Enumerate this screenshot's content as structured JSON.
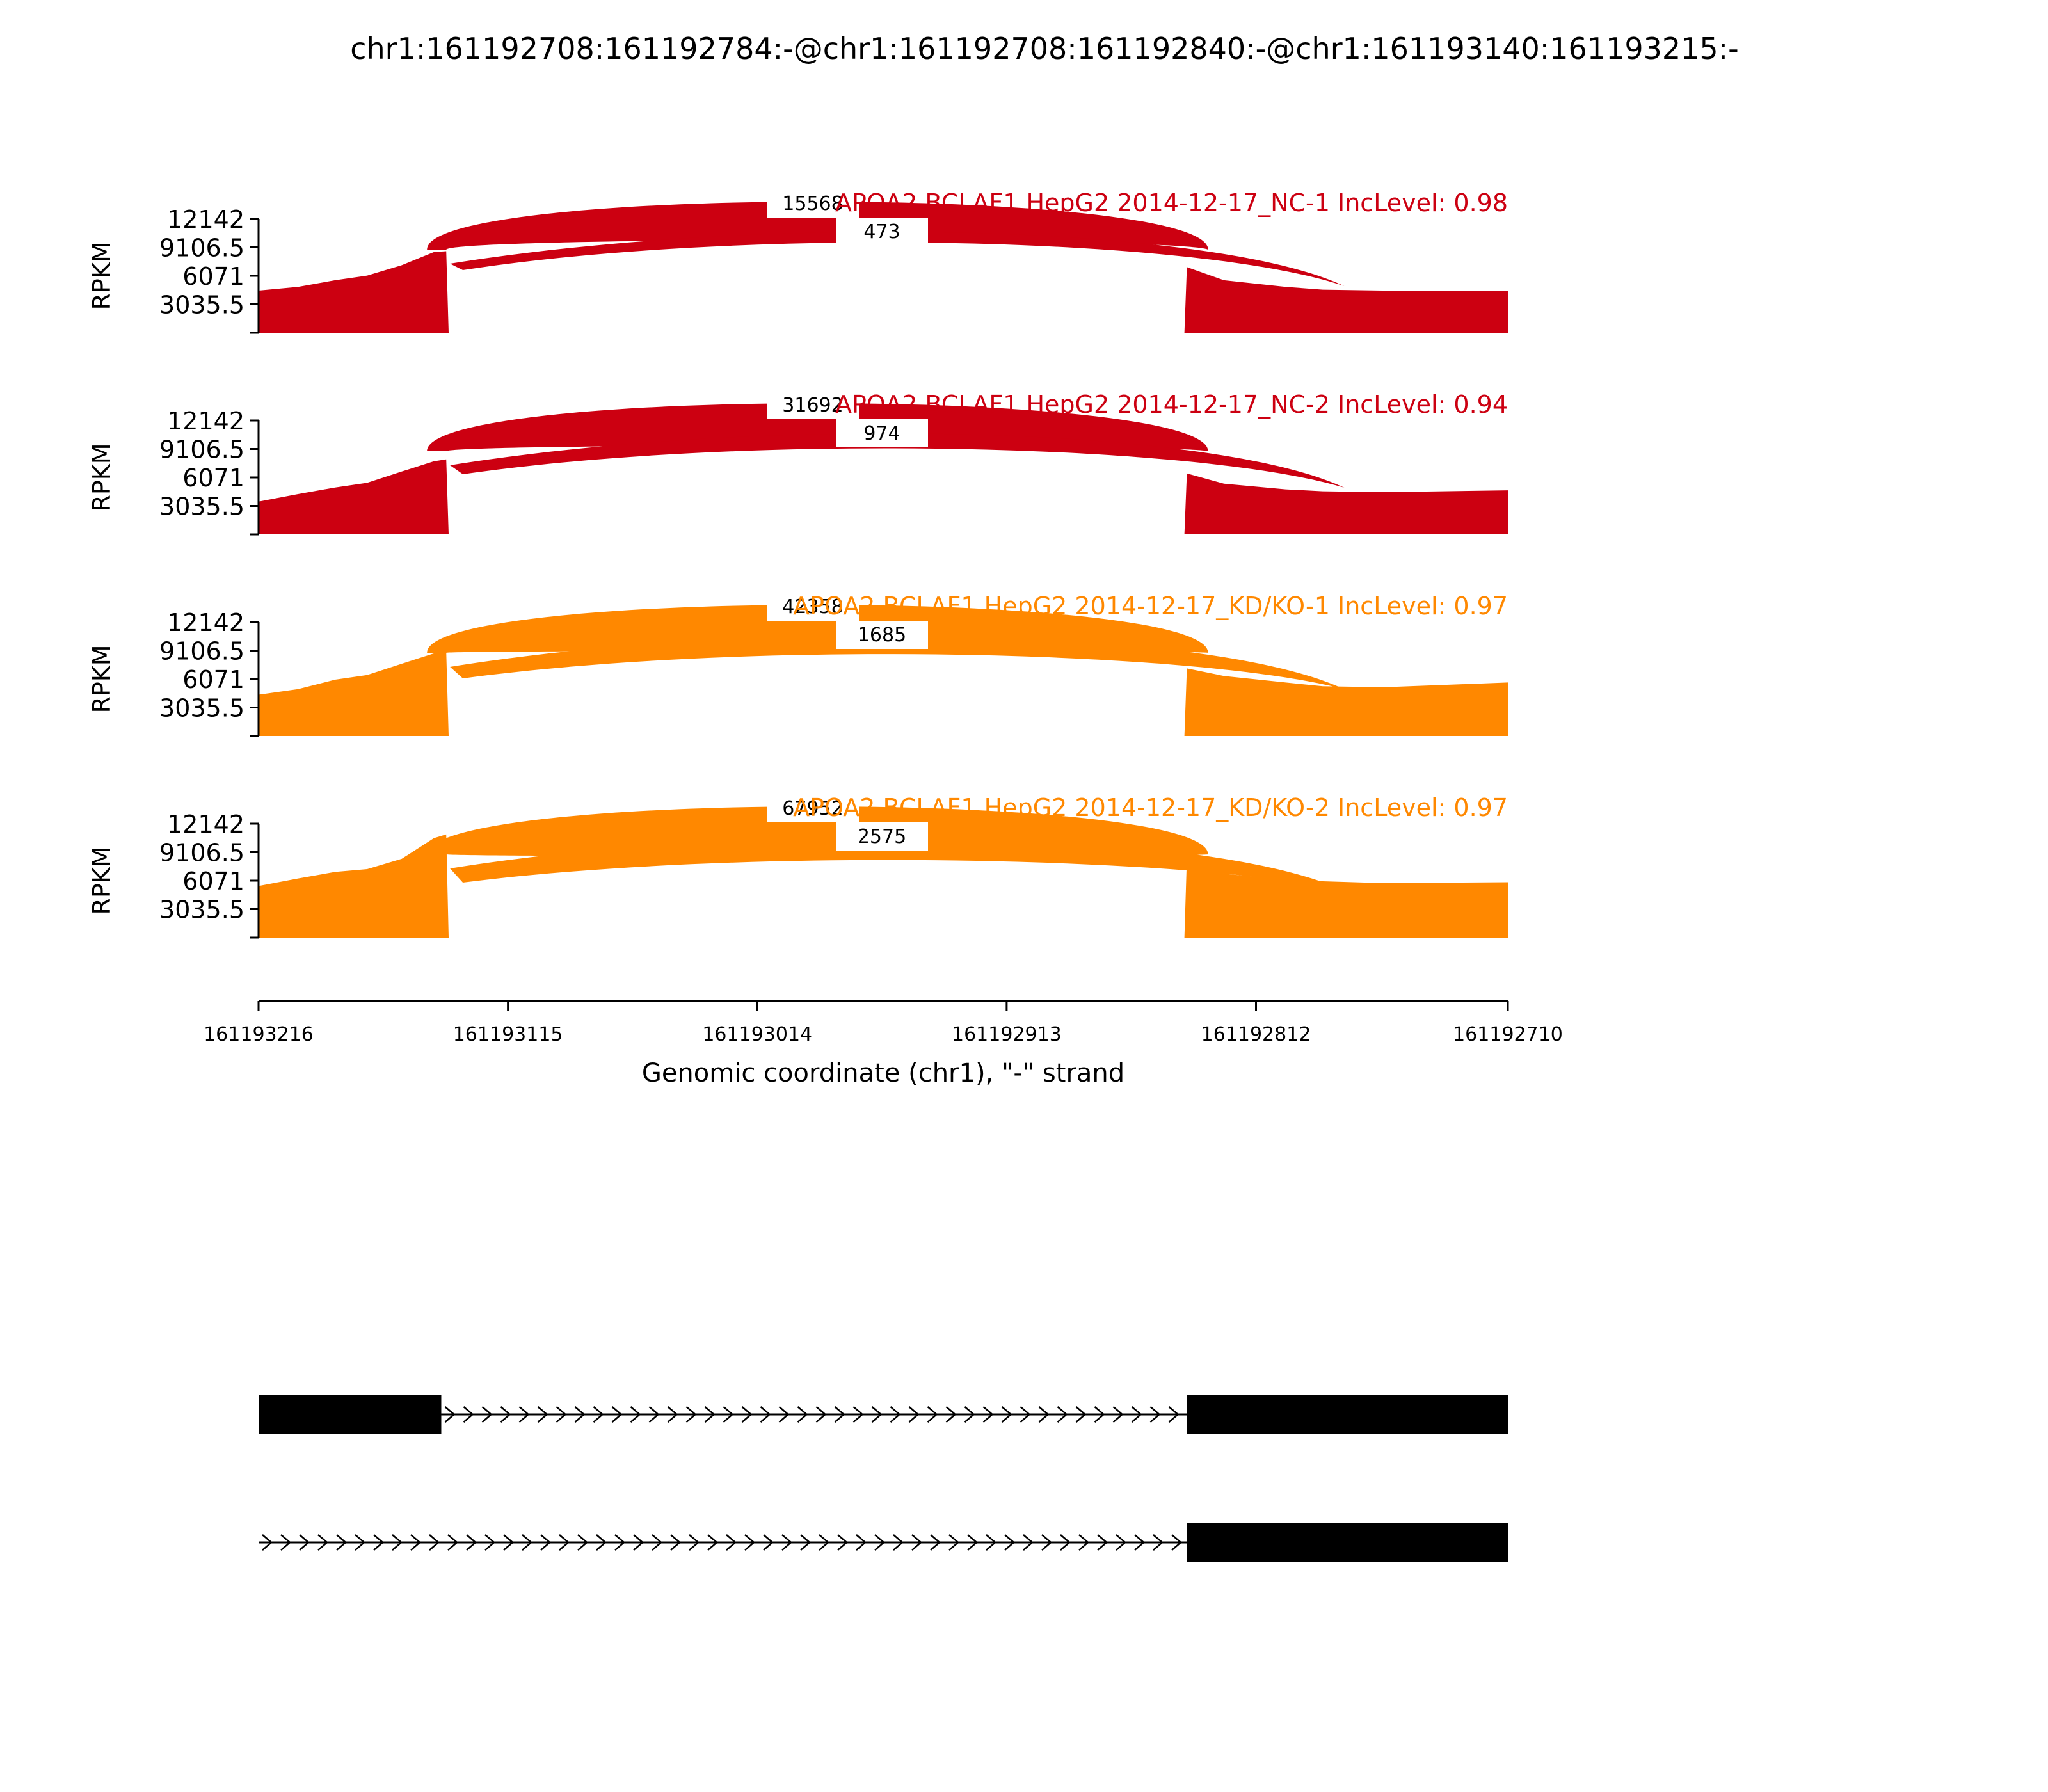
{
  "title": "chr1:161192708:161192784:-@chr1:161192708:161192840:-@chr1:161193140:161193215:-",
  "chart_data": {
    "type": "area",
    "ylabel": "RPKM",
    "yticks": [
      "12142",
      "9106.5",
      "6071",
      "3035.5"
    ],
    "ytick_values": [
      12142,
      9106.5,
      6071,
      3035.5
    ],
    "ylim": [
      0,
      12142
    ],
    "xlabel": "Genomic coordinate (chr1), \"-\" strand",
    "xticks": [
      "161193216",
      "161193115",
      "161193014",
      "161192913",
      "161192812",
      "161192710"
    ],
    "xtick_values": [
      161193216,
      161193115,
      161193014,
      161192913,
      161192812,
      161192710
    ],
    "xlim": [
      161193216,
      161192710
    ],
    "panels": [
      {
        "label": "APOA2 BCLAF1 HepG2 2014-12-17_NC-1 IncLevel: 0.98",
        "color": "#cc0011",
        "junctions": [
          {
            "count": "15568",
            "from": 161193140,
            "to": 161192834
          },
          {
            "count": "473",
            "from": 161193140,
            "to": 161192784
          }
        ],
        "coverage": [
          {
            "x": 161193216,
            "y": 4500
          },
          {
            "x": 161193200,
            "y": 4900
          },
          {
            "x": 161193185,
            "y": 5600
          },
          {
            "x": 161193172,
            "y": 6100
          },
          {
            "x": 161193158,
            "y": 7200
          },
          {
            "x": 161193145,
            "y": 8600
          },
          {
            "x": 161193140,
            "y": 8700
          },
          {
            "x": 161193139,
            "y": 0
          },
          {
            "x": 161192841,
            "y": 0
          },
          {
            "x": 161192840,
            "y": 7000
          },
          {
            "x": 161192825,
            "y": 5600
          },
          {
            "x": 161192800,
            "y": 4900
          },
          {
            "x": 161192785,
            "y": 4600
          },
          {
            "x": 161192760,
            "y": 4500
          },
          {
            "x": 161192710,
            "y": 4500
          }
        ]
      },
      {
        "label": "APOA2 BCLAF1 HepG2 2014-12-17_NC-2 IncLevel: 0.94",
        "color": "#cc0011",
        "junctions": [
          {
            "count": "31692",
            "from": 161193140,
            "to": 161192834
          },
          {
            "count": "974",
            "from": 161193140,
            "to": 161192784
          }
        ],
        "coverage": [
          {
            "x": 161193216,
            "y": 3500
          },
          {
            "x": 161193200,
            "y": 4300
          },
          {
            "x": 161193185,
            "y": 5000
          },
          {
            "x": 161193172,
            "y": 5500
          },
          {
            "x": 161193158,
            "y": 6700
          },
          {
            "x": 161193145,
            "y": 7800
          },
          {
            "x": 161193140,
            "y": 8000
          },
          {
            "x": 161193139,
            "y": 0
          },
          {
            "x": 161192841,
            "y": 0
          },
          {
            "x": 161192840,
            "y": 6500
          },
          {
            "x": 161192825,
            "y": 5400
          },
          {
            "x": 161192800,
            "y": 4800
          },
          {
            "x": 161192785,
            "y": 4600
          },
          {
            "x": 161192760,
            "y": 4500
          },
          {
            "x": 161192710,
            "y": 4700
          }
        ]
      },
      {
        "label": "APOA2 BCLAF1 HepG2 2014-12-17_KD/KO-1 IncLevel: 0.97",
        "color": "#ff8800",
        "junctions": [
          {
            "count": "42358",
            "from": 161193140,
            "to": 161192834
          },
          {
            "count": "1685",
            "from": 161193140,
            "to": 161192784
          }
        ],
        "coverage": [
          {
            "x": 161193216,
            "y": 4400
          },
          {
            "x": 161193200,
            "y": 5000
          },
          {
            "x": 161193185,
            "y": 6000
          },
          {
            "x": 161193172,
            "y": 6500
          },
          {
            "x": 161193158,
            "y": 7700
          },
          {
            "x": 161193145,
            "y": 8800
          },
          {
            "x": 161193140,
            "y": 9000
          },
          {
            "x": 161193139,
            "y": 0
          },
          {
            "x": 161192841,
            "y": 0
          },
          {
            "x": 161192840,
            "y": 7200
          },
          {
            "x": 161192825,
            "y": 6400
          },
          {
            "x": 161192800,
            "y": 5700
          },
          {
            "x": 161192785,
            "y": 5300
          },
          {
            "x": 161192760,
            "y": 5200
          },
          {
            "x": 161192710,
            "y": 5700
          }
        ]
      },
      {
        "label": "APOA2 BCLAF1 HepG2 2014-12-17_KD/KO-2 IncLevel: 0.97",
        "color": "#ff8800",
        "junctions": [
          {
            "count": "67952",
            "from": 161193140,
            "to": 161192834
          },
          {
            "count": "2575",
            "from": 161193140,
            "to": 161192784
          }
        ],
        "coverage": [
          {
            "x": 161193216,
            "y": 5500
          },
          {
            "x": 161193200,
            "y": 6300
          },
          {
            "x": 161193185,
            "y": 7000
          },
          {
            "x": 161193172,
            "y": 7300
          },
          {
            "x": 161193158,
            "y": 8400
          },
          {
            "x": 161193145,
            "y": 10600
          },
          {
            "x": 161193140,
            "y": 11000
          },
          {
            "x": 161193139,
            "y": 0
          },
          {
            "x": 161192841,
            "y": 0
          },
          {
            "x": 161192840,
            "y": 8500
          },
          {
            "x": 161192825,
            "y": 6800
          },
          {
            "x": 161192800,
            "y": 6200
          },
          {
            "x": 161192785,
            "y": 6000
          },
          {
            "x": 161192760,
            "y": 5800
          },
          {
            "x": 161192710,
            "y": 5900
          }
        ]
      }
    ],
    "isoforms": [
      {
        "exons": [
          [
            161193216,
            161193142
          ],
          [
            161192840,
            161192710
          ]
        ],
        "intron": [
          161193142,
          161192840
        ]
      },
      {
        "exons": [
          [
            161192840,
            161192710
          ]
        ],
        "intron": [
          161193216,
          161192840
        ]
      }
    ]
  }
}
